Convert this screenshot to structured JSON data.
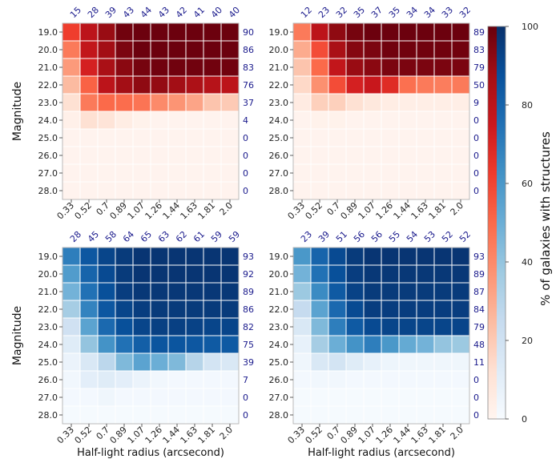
{
  "chart_data": {
    "type": "heatmap",
    "x_categories": [
      "0.33",
      "0.52",
      "0.7",
      "0.89",
      "1.07",
      "1.26",
      "1.44",
      "1.63",
      "1.81",
      "2.0"
    ],
    "y_categories": [
      "19.0",
      "20.0",
      "21.0",
      "22.0",
      "23.0",
      "24.0",
      "25.0",
      "26.0",
      "27.0",
      "28.0"
    ],
    "xlabel": "Half-light radius (arcsecond)",
    "ylabel": "Magnitude",
    "colorbar": {
      "label": "% of galaxies with structures",
      "range": [
        0,
        100
      ],
      "ticks": [
        "0",
        "20",
        "40",
        "60",
        "80",
        "100"
      ],
      "colormaps": {
        "top": "Reds",
        "bottom": "Blues"
      }
    },
    "panels": [
      {
        "position": "top-left",
        "colormap": "Reds",
        "show_ylabel": true,
        "show_xlabel": false,
        "top_labels": [
          "15",
          "28",
          "39",
          "43",
          "44",
          "43",
          "42",
          "41",
          "40",
          "40"
        ],
        "right_labels": [
          "90",
          "86",
          "83",
          "76",
          "37",
          "4",
          "0",
          "0",
          "0",
          "0"
        ],
        "values": [
          [
            62,
            80,
            90,
            98,
            99,
            99,
            99,
            99,
            99,
            99
          ],
          [
            45,
            78,
            88,
            96,
            99,
            99,
            99,
            99,
            99,
            99
          ],
          [
            35,
            72,
            86,
            93,
            97,
            98,
            98,
            98,
            98,
            98
          ],
          [
            25,
            52,
            80,
            88,
            92,
            91,
            88,
            85,
            82,
            80
          ],
          [
            12,
            45,
            50,
            49,
            47,
            40,
            37,
            32,
            22,
            20
          ],
          [
            3,
            12,
            10,
            5,
            2,
            1,
            1,
            1,
            1,
            1
          ],
          [
            1,
            1,
            1,
            1,
            1,
            1,
            1,
            1,
            1,
            1
          ],
          [
            1,
            1,
            1,
            1,
            1,
            1,
            1,
            1,
            1,
            1
          ],
          [
            1,
            1,
            1,
            1,
            1,
            1,
            1,
            1,
            1,
            1
          ],
          [
            1,
            1,
            1,
            1,
            1,
            1,
            1,
            1,
            1,
            1
          ]
        ]
      },
      {
        "position": "top-right",
        "colormap": "Reds",
        "show_ylabel": false,
        "show_xlabel": false,
        "top_labels": [
          "12",
          "23",
          "32",
          "35",
          "37",
          "35",
          "34",
          "34",
          "33",
          "32"
        ],
        "right_labels": [
          "89",
          "83",
          "79",
          "50",
          "9",
          "0",
          "0",
          "0",
          "0",
          "0"
        ],
        "values": [
          [
            45,
            80,
            92,
            97,
            99,
            99,
            99,
            99,
            99,
            99
          ],
          [
            30,
            58,
            86,
            94,
            96,
            98,
            98,
            98,
            98,
            98
          ],
          [
            22,
            50,
            78,
            90,
            93,
            96,
            96,
            96,
            96,
            96
          ],
          [
            15,
            38,
            58,
            72,
            76,
            68,
            48,
            45,
            44,
            45
          ],
          [
            6,
            18,
            18,
            12,
            8,
            5,
            4,
            4,
            4,
            4
          ],
          [
            1,
            2,
            2,
            1,
            1,
            1,
            1,
            1,
            1,
            1
          ],
          [
            1,
            1,
            1,
            1,
            1,
            1,
            1,
            1,
            1,
            1
          ],
          [
            1,
            1,
            1,
            1,
            1,
            1,
            1,
            1,
            1,
            1
          ],
          [
            1,
            1,
            1,
            1,
            1,
            1,
            1,
            1,
            1,
            1
          ],
          [
            1,
            1,
            1,
            1,
            1,
            1,
            1,
            1,
            1,
            1
          ]
        ]
      },
      {
        "position": "bottom-left",
        "colormap": "Blues",
        "show_ylabel": true,
        "show_xlabel": true,
        "top_labels": [
          "28",
          "45",
          "58",
          "64",
          "65",
          "63",
          "62",
          "61",
          "59",
          "59"
        ],
        "right_labels": [
          "93",
          "92",
          "89",
          "86",
          "82",
          "75",
          "39",
          "7",
          "0",
          "0"
        ],
        "values": [
          [
            70,
            85,
            92,
            96,
            98,
            98,
            98,
            98,
            98,
            98
          ],
          [
            58,
            80,
            90,
            96,
            98,
            98,
            98,
            98,
            98,
            98
          ],
          [
            48,
            75,
            88,
            95,
            97,
            97,
            97,
            97,
            97,
            97
          ],
          [
            35,
            68,
            85,
            92,
            95,
            96,
            96,
            96,
            96,
            96
          ],
          [
            20,
            55,
            78,
            88,
            92,
            94,
            94,
            93,
            92,
            92
          ],
          [
            12,
            40,
            62,
            75,
            82,
            86,
            86,
            85,
            84,
            84
          ],
          [
            6,
            15,
            28,
            45,
            55,
            50,
            45,
            30,
            18,
            15
          ],
          [
            3,
            10,
            12,
            10,
            6,
            3,
            2,
            2,
            2,
            2
          ],
          [
            2,
            2,
            4,
            2,
            2,
            2,
            2,
            2,
            2,
            2
          ],
          [
            1,
            1,
            1,
            1,
            1,
            1,
            1,
            1,
            1,
            1
          ]
        ]
      },
      {
        "position": "bottom-right",
        "colormap": "Blues",
        "show_ylabel": false,
        "show_xlabel": true,
        "top_labels": [
          "23",
          "39",
          "51",
          "56",
          "56",
          "55",
          "54",
          "53",
          "52",
          "52"
        ],
        "right_labels": [
          "93",
          "89",
          "87",
          "84",
          "79",
          "48",
          "11",
          "0",
          "0",
          "0"
        ],
        "values": [
          [
            60,
            80,
            90,
            96,
            98,
            98,
            98,
            98,
            98,
            98
          ],
          [
            48,
            75,
            88,
            95,
            97,
            97,
            97,
            97,
            97,
            97
          ],
          [
            38,
            65,
            84,
            93,
            96,
            96,
            96,
            96,
            96,
            96
          ],
          [
            25,
            55,
            78,
            90,
            95,
            95,
            95,
            95,
            95,
            95
          ],
          [
            15,
            45,
            70,
            84,
            90,
            92,
            92,
            92,
            92,
            92
          ],
          [
            8,
            35,
            50,
            62,
            70,
            60,
            52,
            48,
            40,
            38
          ],
          [
            4,
            15,
            18,
            12,
            8,
            5,
            4,
            4,
            4,
            4
          ],
          [
            2,
            3,
            3,
            2,
            2,
            2,
            2,
            2,
            2,
            2
          ],
          [
            1,
            1,
            1,
            1,
            1,
            1,
            1,
            1,
            1,
            1
          ],
          [
            1,
            1,
            1,
            1,
            1,
            1,
            1,
            1,
            1,
            1
          ]
        ]
      }
    ]
  }
}
